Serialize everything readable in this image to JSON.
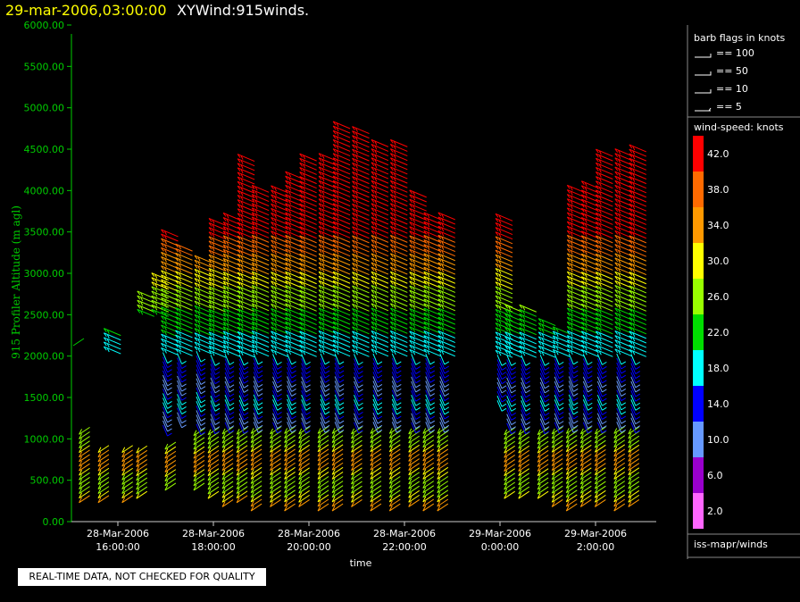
{
  "title": {
    "datetime": "29-mar-2006,03:00:00",
    "name": "XYWind:915winds."
  },
  "warning": "REAL-TIME DATA, NOT CHECKED FOR QUALITY",
  "legend": {
    "barb_title": "barb flags in knots",
    "barb_items": [
      "== 100",
      "== 50",
      "== 10",
      "== 5"
    ],
    "speed_title": "wind-speed: knots",
    "speed_levels": [
      {
        "label": "42.0",
        "color": "#ff0000"
      },
      {
        "label": "38.0",
        "color": "#ff6a00"
      },
      {
        "label": "34.0",
        "color": "#ff9900"
      },
      {
        "label": "30.0",
        "color": "#ffff00"
      },
      {
        "label": "26.0",
        "color": "#99ff00"
      },
      {
        "label": "22.0",
        "color": "#00dd00"
      },
      {
        "label": "18.0",
        "color": "#00ffff"
      },
      {
        "label": "14.0",
        "color": "#0000ff"
      },
      {
        "label": "10.0",
        "color": "#6699ff"
      },
      {
        "label": "6.0",
        "color": "#9900cc"
      },
      {
        "label": "2.0",
        "color": "#ff66ff"
      }
    ],
    "source": "iss-mapr/winds"
  },
  "chart_data": {
    "type": "scatter",
    "ylabel": "915 Profiler Altitude (m agl)",
    "xlabel": "time",
    "ylim": [
      0,
      6000
    ],
    "yticks": [
      "0.00",
      "500.00",
      "1000.00",
      "1500.00",
      "2000.00",
      "2500.00",
      "3000.00",
      "3500.00",
      "4000.00",
      "4500.00",
      "5000.00",
      "5500.00",
      "6000.00"
    ],
    "xticks": [
      {
        "date": "28-Mar-2006",
        "time": "16:00:00",
        "hour": 16
      },
      {
        "date": "28-Mar-2006",
        "time": "18:00:00",
        "hour": 18
      },
      {
        "date": "28-Mar-2006",
        "time": "20:00:00",
        "hour": 20
      },
      {
        "date": "28-Mar-2006",
        "time": "22:00:00",
        "hour": 22
      },
      {
        "date": "29-Mar-2006",
        "time": "0:00:00",
        "hour": 24
      },
      {
        "date": "29-Mar-2006",
        "time": "2:00:00",
        "hour": 26
      }
    ],
    "xlim_hours": [
      14.9,
      27.3
    ],
    "profiles": [
      {
        "hour": 15.3,
        "bot": 250,
        "top": 1100
      },
      {
        "hour": 15.7,
        "bot": 250,
        "top": 900
      },
      {
        "hour": 15.8,
        "bot": 2050,
        "top": 2300
      },
      {
        "hour": 16.2,
        "bot": 250,
        "top": 900
      },
      {
        "hour": 16.5,
        "bot": 300,
        "top": 900
      },
      {
        "hour": 16.5,
        "bot": 2500,
        "top": 2750
      },
      {
        "hour": 16.8,
        "bot": 2500,
        "top": 2950
      },
      {
        "hour": 17.0,
        "bot": 1100,
        "top": 3500
      },
      {
        "hour": 17.3,
        "bot": 1200,
        "top": 3300
      },
      {
        "hour": 17.1,
        "bot": 400,
        "top": 900
      },
      {
        "hour": 17.7,
        "bot": 400,
        "top": 3200
      },
      {
        "hour": 18.0,
        "bot": 300,
        "top": 3650
      },
      {
        "hour": 18.3,
        "bot": 200,
        "top": 3700
      },
      {
        "hour": 18.6,
        "bot": 250,
        "top": 4400
      },
      {
        "hour": 18.9,
        "bot": 150,
        "top": 4000
      },
      {
        "hour": 19.3,
        "bot": 200,
        "top": 4000
      },
      {
        "hour": 19.6,
        "bot": 150,
        "top": 4200
      },
      {
        "hour": 19.9,
        "bot": 200,
        "top": 4400
      },
      {
        "hour": 20.3,
        "bot": 150,
        "top": 4400
      },
      {
        "hour": 20.6,
        "bot": 150,
        "top": 4800
      },
      {
        "hour": 21.0,
        "bot": 200,
        "top": 4750
      },
      {
        "hour": 21.4,
        "bot": 150,
        "top": 4550
      },
      {
        "hour": 21.8,
        "bot": 150,
        "top": 4600
      },
      {
        "hour": 22.2,
        "bot": 200,
        "top": 3950
      },
      {
        "hour": 22.5,
        "bot": 150,
        "top": 3700
      },
      {
        "hour": 22.8,
        "bot": 150,
        "top": 3700
      },
      {
        "hour": 24.0,
        "bot": 1400,
        "top": 3700
      },
      {
        "hour": 24.2,
        "bot": 300,
        "top": 2600
      },
      {
        "hour": 24.5,
        "bot": 300,
        "top": 2600
      },
      {
        "hour": 24.9,
        "bot": 300,
        "top": 2400
      },
      {
        "hour": 25.2,
        "bot": 200,
        "top": 2300
      },
      {
        "hour": 25.5,
        "bot": 150,
        "top": 4000
      },
      {
        "hour": 25.8,
        "bot": 200,
        "top": 4050
      },
      {
        "hour": 26.1,
        "bot": 200,
        "top": 4450
      },
      {
        "hour": 26.5,
        "bot": 150,
        "top": 4450
      },
      {
        "hour": 26.8,
        "bot": 200,
        "top": 4500
      }
    ]
  }
}
